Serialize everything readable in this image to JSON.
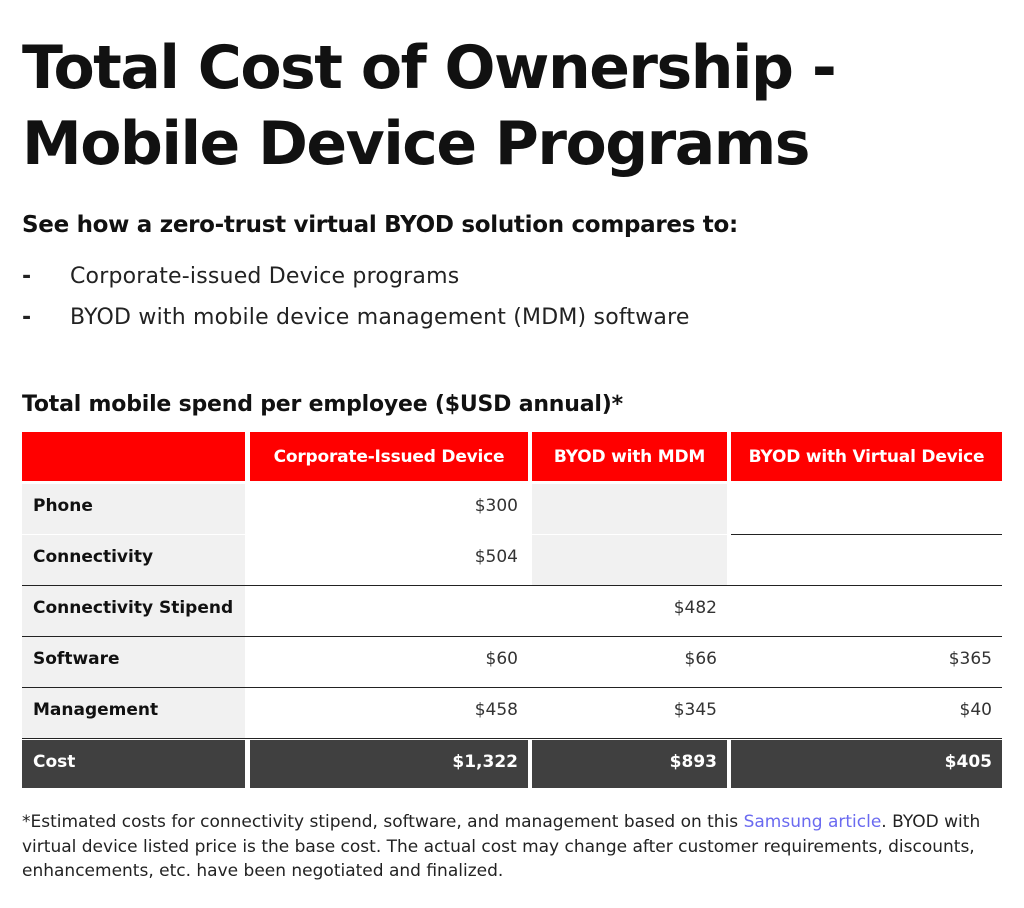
{
  "title": {
    "line1": "Total Cost of Ownership -",
    "line2": "Mobile Device Programs"
  },
  "subtitle": "See how a zero-trust virtual BYOD solution compares to:",
  "bullets": [
    {
      "dash": "-",
      "text": "Corporate-issued Device programs"
    },
    {
      "dash": "-",
      "text": "BYOD with mobile device management (MDM) software"
    }
  ],
  "table": {
    "caption": "Total mobile spend per employee ($USD annual)*",
    "headers": [
      "",
      "Corporate-Issued Device",
      "BYOD with MDM",
      "BYOD with Virtual Device"
    ],
    "rows": [
      {
        "label": "Phone",
        "values": [
          "$300",
          "",
          ""
        ]
      },
      {
        "label": "Connectivity",
        "values": [
          "$504",
          "",
          ""
        ]
      },
      {
        "label": "Connectivity Stipend",
        "values": [
          "",
          "$482",
          ""
        ]
      },
      {
        "label": "Software",
        "values": [
          "$60",
          "$66",
          "$365"
        ]
      },
      {
        "label": "Management",
        "values": [
          "$458",
          "$345",
          "$40"
        ]
      }
    ],
    "total": {
      "label": "Cost",
      "values": [
        "$1,322",
        "$893",
        "$405"
      ]
    }
  },
  "footnote": {
    "before": "*Estimated costs for connectivity stipend, software, and management based on this ",
    "link": "Samsung article",
    "after": ". BYOD with virtual device listed price is the base cost. The actual cost may change after customer requirements, discounts, enhancements, etc. have been negotiated and finalized."
  },
  "colors": {
    "header_bg": "#ff0000",
    "total_bg": "#404040",
    "shaded_bg": "#f1f1f1",
    "link": "#6a6af0"
  }
}
